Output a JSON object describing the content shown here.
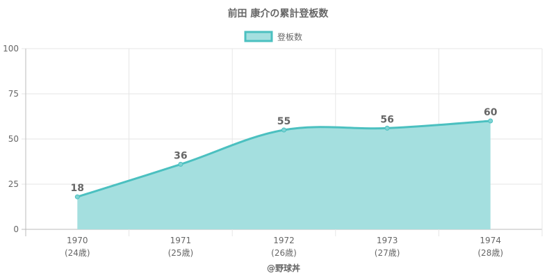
{
  "chart_data": {
    "type": "area",
    "title": "前田 康介の累計登板数",
    "legend": {
      "label": "登板数",
      "position": "top"
    },
    "xlabel": "@野球丼",
    "ylabel": "",
    "categories": [
      {
        "year": "1970",
        "age": "(24歳)"
      },
      {
        "year": "1971",
        "age": "(25歳)"
      },
      {
        "year": "1972",
        "age": "(26歳)"
      },
      {
        "year": "1973",
        "age": "(27歳)"
      },
      {
        "year": "1974",
        "age": "(28歳)"
      }
    ],
    "series": [
      {
        "name": "登板数",
        "values": [
          18,
          36,
          55,
          56,
          60
        ]
      }
    ],
    "ylim": [
      0,
      100
    ],
    "yticks": [
      0,
      25,
      50,
      75,
      100
    ],
    "grid": true,
    "colors": {
      "line": "#4bc0c0",
      "fill": "#a4dfdf",
      "point": "#7fd3d3",
      "grid": "#e6e6e6",
      "axis": "#bbbbbb"
    }
  }
}
